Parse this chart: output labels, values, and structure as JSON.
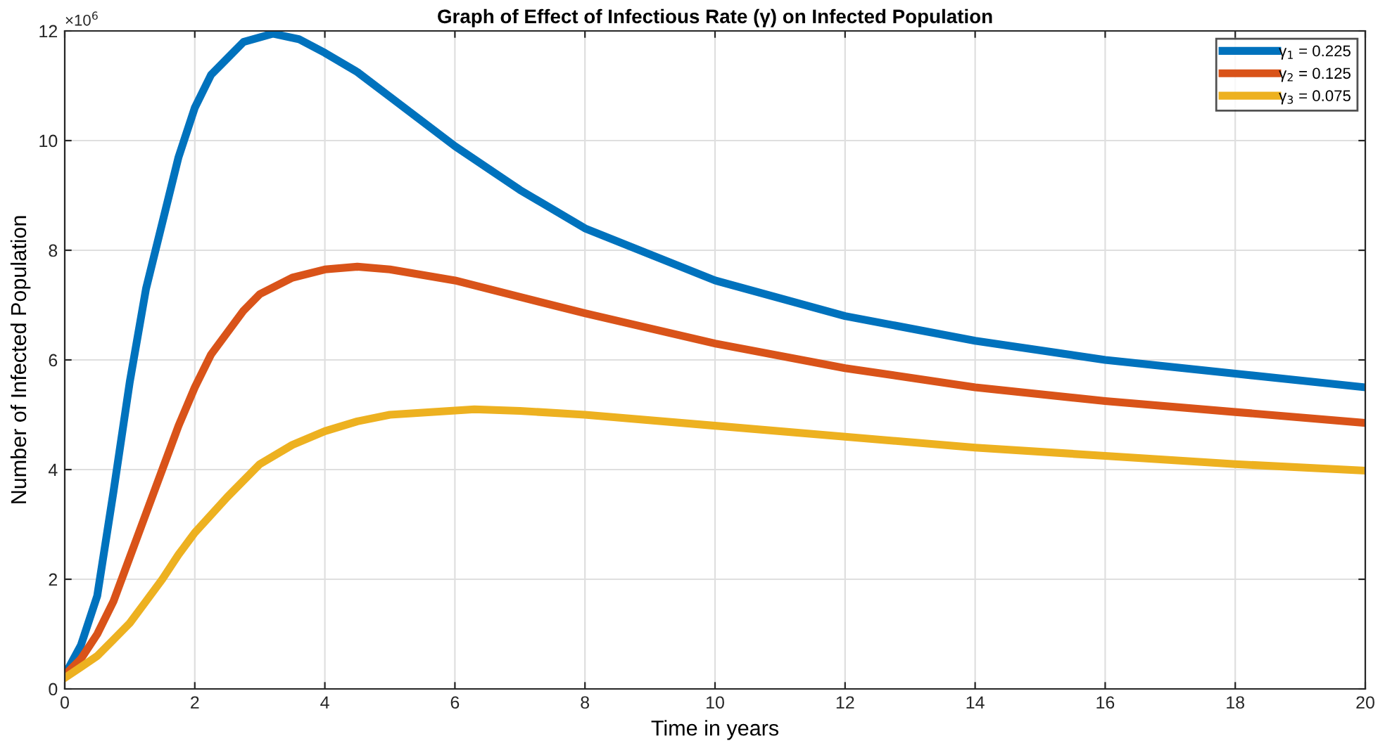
{
  "chart_data": {
    "type": "line",
    "title": "Graph of Effect of Infectious Rate (γ) on Infected Population",
    "xlabel": "Time in years",
    "ylabel": "Number of Infected Population",
    "annotations": [
      "×10$^{6}$"
    ],
    "xlim": [
      0,
      20
    ],
    "xticks": [
      0,
      2,
      4,
      6,
      8,
      10,
      12,
      14,
      16,
      18,
      20
    ],
    "ylim": [
      0,
      12
    ],
    "yticks": [
      0,
      2,
      4,
      6,
      8,
      10,
      12
    ],
    "grid": true,
    "legend": "top right",
    "line_style": "solid",
    "marker": "none",
    "series": [
      {
        "name": "γ$_{1}$ = 0.225",
        "color": "#0072bd",
        "x": [
          0,
          0.25,
          0.5,
          0.75,
          1,
          1.25,
          1.5,
          1.75,
          2,
          2.25,
          2.5,
          2.75,
          3.2,
          3.6,
          4,
          4.5,
          5,
          6,
          7,
          8,
          10,
          12,
          14,
          16,
          18,
          20
        ],
        "values": [
          0.25,
          0.8,
          1.7,
          3.6,
          5.6,
          7.3,
          8.5,
          9.7,
          10.6,
          11.2,
          11.5,
          11.8,
          11.95,
          11.85,
          11.6,
          11.25,
          10.8,
          9.9,
          9.1,
          8.4,
          7.45,
          6.8,
          6.35,
          6.0,
          5.75,
          5.5
        ]
      },
      {
        "name": "γ$_{2}$ = 0.125",
        "color": "#d95319",
        "x": [
          0,
          0.25,
          0.5,
          0.75,
          1,
          1.25,
          1.5,
          1.75,
          2,
          2.25,
          2.5,
          2.75,
          3,
          3.5,
          4,
          4.5,
          5,
          6,
          7,
          8,
          10,
          12,
          14,
          16,
          18,
          20
        ],
        "values": [
          0.25,
          0.55,
          1.0,
          1.6,
          2.4,
          3.2,
          4.0,
          4.8,
          5.5,
          6.1,
          6.5,
          6.9,
          7.2,
          7.5,
          7.65,
          7.7,
          7.65,
          7.45,
          7.15,
          6.85,
          6.3,
          5.85,
          5.5,
          5.25,
          5.05,
          4.85
        ]
      },
      {
        "name": "γ$_{3}$ = 0.075",
        "color": "#edb120",
        "x": [
          0,
          0.25,
          0.5,
          0.75,
          1,
          1.25,
          1.5,
          1.75,
          2,
          2.5,
          3,
          3.5,
          4,
          4.5,
          5,
          6.3,
          7,
          8,
          10,
          12,
          14,
          16,
          18,
          20
        ],
        "values": [
          0.2,
          0.4,
          0.6,
          0.9,
          1.2,
          1.6,
          2.0,
          2.45,
          2.85,
          3.5,
          4.1,
          4.45,
          4.7,
          4.88,
          5.0,
          5.1,
          5.07,
          5.0,
          4.8,
          4.6,
          4.4,
          4.25,
          4.1,
          3.98
        ]
      }
    ]
  }
}
